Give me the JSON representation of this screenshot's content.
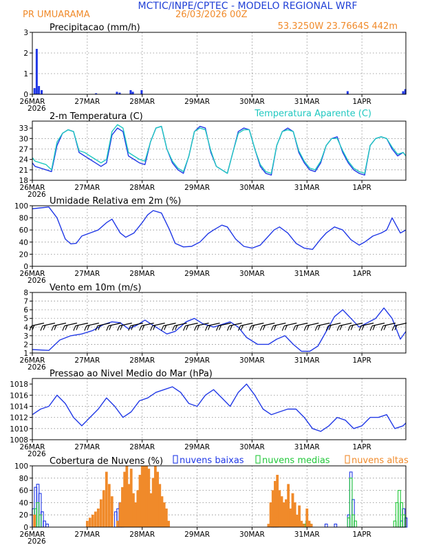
{
  "header": {
    "title": "MCTIC/INPE/CPTEC - MODELO REGIONAL WRF",
    "location": "PR UMUARAMA",
    "run": "26/03/2026 00Z",
    "coords": "53.3250W 23.7664S 442m"
  },
  "colors": {
    "title": "#1f3fd6",
    "orange": "#f08a2a",
    "blue": "#2038e6",
    "cyan": "#20c8c0",
    "green": "#22c83a",
    "black": "#000000",
    "grid": "#888888"
  },
  "x_axis": {
    "ticks": [
      "26MAR",
      "27MAR",
      "28MAR",
      "29MAR",
      "30MAR",
      "31MAR",
      "1APR"
    ],
    "year": "2026",
    "days": 6.8
  },
  "chart_data": [
    {
      "id": "precip",
      "type": "bar",
      "title": "Precipitacao (mm/h)",
      "ylim": [
        0,
        3
      ],
      "yticks": [
        0,
        1,
        2,
        3
      ],
      "x": [
        0.04,
        0.08,
        0.12,
        0.17,
        1.16,
        1.54,
        1.59,
        1.79,
        1.83,
        1.99,
        5.74,
        6.75,
        6.79
      ],
      "values": [
        0.3,
        2.2,
        0.4,
        0.2,
        0.05,
        0.12,
        0.08,
        0.2,
        0.12,
        0.2,
        0.15,
        0.15,
        0.25
      ]
    },
    {
      "id": "temp",
      "type": "line",
      "title": "2-m Temperatura (C)",
      "legend": "Temperatura Aparente (C)",
      "ylim": [
        18,
        35
      ],
      "yticks": [
        18,
        21,
        24,
        27,
        30,
        33
      ],
      "series": [
        {
          "name": "Temperatura",
          "color": "#2038e6",
          "x": [
            0,
            0.05,
            0.15,
            0.25,
            0.35,
            0.45,
            0.55,
            0.65,
            0.75,
            0.85,
            0.95,
            1.05,
            1.15,
            1.25,
            1.35,
            1.45,
            1.55,
            1.65,
            1.75,
            1.85,
            1.95,
            2.05,
            2.15,
            2.25,
            2.35,
            2.45,
            2.55,
            2.65,
            2.75,
            2.85,
            2.95,
            3.05,
            3.15,
            3.25,
            3.35,
            3.45,
            3.55,
            3.65,
            3.75,
            3.85,
            3.95,
            4.05,
            4.15,
            4.25,
            4.35,
            4.45,
            4.55,
            4.65,
            4.75,
            4.85,
            4.95,
            5.05,
            5.15,
            5.25,
            5.35,
            5.45,
            5.55,
            5.65,
            5.75,
            5.85,
            5.95,
            6.05,
            6.15,
            6.25,
            6.35,
            6.45,
            6.55,
            6.65,
            6.75,
            6.8
          ],
          "y": [
            23,
            22,
            21.5,
            21,
            20.5,
            28,
            31.5,
            32.5,
            32,
            26,
            25,
            24,
            23,
            22,
            23,
            31,
            33,
            32,
            25,
            24,
            23,
            22.5,
            29,
            33,
            33.5,
            27,
            23,
            21,
            20,
            25,
            32,
            33.5,
            33,
            26,
            22,
            21,
            20,
            26,
            32,
            33,
            32.5,
            27,
            22,
            20,
            19.5,
            28,
            32,
            33,
            32,
            26,
            23,
            21,
            20.5,
            23,
            28,
            30,
            30.5,
            26,
            23,
            21,
            20,
            19.5,
            28,
            30,
            30.5,
            30,
            27,
            25,
            26,
            25
          ]
        },
        {
          "name": "Temperatura Aparente",
          "color": "#20c8c0",
          "x": [
            0,
            0.05,
            0.15,
            0.25,
            0.35,
            0.45,
            0.55,
            0.65,
            0.75,
            0.85,
            0.95,
            1.05,
            1.15,
            1.25,
            1.35,
            1.45,
            1.55,
            1.65,
            1.75,
            1.85,
            1.95,
            2.05,
            2.15,
            2.25,
            2.35,
            2.45,
            2.55,
            2.65,
            2.75,
            2.85,
            2.95,
            3.05,
            3.15,
            3.25,
            3.35,
            3.45,
            3.55,
            3.65,
            3.75,
            3.85,
            3.95,
            4.05,
            4.15,
            4.25,
            4.35,
            4.45,
            4.55,
            4.65,
            4.75,
            4.85,
            4.95,
            5.05,
            5.15,
            5.25,
            5.35,
            5.45,
            5.55,
            5.65,
            5.75,
            5.85,
            5.95,
            6.05,
            6.15,
            6.25,
            6.35,
            6.45,
            6.55,
            6.65,
            6.75,
            6.8
          ],
          "y": [
            24.5,
            23.5,
            23,
            22.5,
            21,
            29,
            31.5,
            32.5,
            32,
            26.5,
            26,
            25,
            24,
            23,
            24,
            32,
            34,
            33,
            26,
            25,
            24,
            23.5,
            29,
            33,
            33.5,
            27,
            23.5,
            21.5,
            20.5,
            25,
            32,
            33,
            32.5,
            26.5,
            22,
            21,
            20,
            26,
            31.5,
            32.5,
            32.5,
            27,
            22.5,
            20.5,
            20,
            28,
            32,
            32.5,
            32,
            26.5,
            23.5,
            21.5,
            21,
            23.5,
            28,
            30,
            30,
            26.5,
            23.5,
            21.5,
            20.5,
            20,
            28,
            30,
            30.5,
            30,
            27.5,
            25.5,
            26,
            25
          ]
        }
      ]
    },
    {
      "id": "rh",
      "type": "line",
      "title": "Umidade Relativa em 2m (%)",
      "ylim": [
        0,
        100
      ],
      "yticks": [
        0,
        20,
        40,
        60,
        80,
        100
      ],
      "series": [
        {
          "name": "Umidade",
          "color": "#2038e6",
          "x": [
            0,
            0.1,
            0.3,
            0.45,
            0.6,
            0.7,
            0.8,
            0.9,
            1.05,
            1.2,
            1.35,
            1.45,
            1.6,
            1.7,
            1.85,
            2.0,
            2.1,
            2.2,
            2.35,
            2.5,
            2.6,
            2.75,
            2.9,
            3.05,
            3.2,
            3.3,
            3.45,
            3.55,
            3.7,
            3.85,
            4.0,
            4.15,
            4.25,
            4.4,
            4.5,
            4.65,
            4.8,
            4.95,
            5.1,
            5.25,
            5.35,
            5.5,
            5.65,
            5.8,
            5.95,
            6.05,
            6.2,
            6.35,
            6.45,
            6.55,
            6.7,
            6.8
          ],
          "y": [
            95,
            96,
            98,
            80,
            45,
            37,
            38,
            50,
            55,
            60,
            72,
            78,
            55,
            48,
            55,
            72,
            85,
            92,
            88,
            60,
            38,
            32,
            33,
            40,
            54,
            60,
            68,
            65,
            45,
            33,
            30,
            35,
            45,
            60,
            65,
            55,
            38,
            30,
            28,
            45,
            55,
            65,
            60,
            44,
            35,
            40,
            50,
            55,
            60,
            80,
            55,
            60
          ]
        }
      ]
    },
    {
      "id": "wind",
      "type": "line",
      "title": "Vento em 10m (m/s)",
      "ylim": [
        1,
        8
      ],
      "yticks": [
        1,
        2,
        3,
        4,
        5,
        6,
        7,
        8
      ],
      "series": [
        {
          "name": "Vento",
          "color": "#2038e6",
          "x": [
            0,
            0.3,
            0.5,
            0.7,
            0.9,
            1.1,
            1.3,
            1.45,
            1.6,
            1.75,
            1.9,
            2.05,
            2.2,
            2.3,
            2.45,
            2.6,
            2.8,
            2.95,
            3.1,
            3.3,
            3.45,
            3.6,
            3.75,
            3.9,
            4.1,
            4.3,
            4.45,
            4.6,
            4.75,
            4.9,
            5.05,
            5.2,
            5.35,
            5.5,
            5.65,
            5.8,
            5.95,
            6.1,
            6.25,
            6.4,
            6.55,
            6.7,
            6.8
          ],
          "y": [
            1.4,
            1.3,
            2.5,
            3.0,
            3.2,
            3.6,
            4.3,
            4.6,
            4.5,
            3.8,
            4.2,
            4.8,
            4.2,
            3.8,
            3.2,
            3.5,
            4.6,
            5.0,
            4.4,
            4.0,
            4.3,
            4.6,
            4.0,
            2.8,
            2.0,
            2.0,
            2.6,
            3.0,
            2.0,
            1.2,
            1.2,
            1.8,
            3.5,
            5.2,
            6.0,
            5.0,
            4.0,
            4.5,
            5.0,
            6.2,
            5.0,
            2.6,
            3.5
          ]
        },
        {
          "name": "Barbs",
          "color": "#000000",
          "x": [
            0.1,
            0.3,
            0.5,
            0.7,
            0.9,
            1.1,
            1.3,
            1.5,
            1.7,
            1.9,
            2.1,
            2.3,
            2.5,
            2.7,
            2.9,
            3.1,
            3.3,
            3.5,
            3.7,
            3.9,
            4.1,
            4.3,
            4.5,
            4.7,
            4.9,
            5.1,
            5.3,
            5.5,
            5.7,
            5.9,
            6.1,
            6.3,
            6.5,
            6.7
          ],
          "y": [
            4.3,
            4.3,
            4.3,
            4.3,
            4.3,
            4.3,
            4.3,
            4.3,
            4.3,
            4.3,
            4.3,
            4.3,
            4.3,
            4.3,
            4.3,
            4.3,
            4.3,
            4.3,
            4.3,
            4.3,
            4.3,
            4.3,
            4.3,
            4.3,
            4.3,
            4.3,
            4.3,
            4.3,
            4.3,
            4.3,
            4.3,
            4.3,
            4.3,
            4.3
          ]
        }
      ]
    },
    {
      "id": "slp",
      "type": "line",
      "title": "Pressao ao Nivel Medio do Mar (hPa)",
      "ylim": [
        1008,
        1019
      ],
      "yticks": [
        1008,
        1010,
        1012,
        1014,
        1016,
        1018
      ],
      "series": [
        {
          "name": "Pressao",
          "color": "#2038e6",
          "x": [
            0,
            0.15,
            0.3,
            0.45,
            0.6,
            0.75,
            0.9,
            1.05,
            1.2,
            1.35,
            1.5,
            1.65,
            1.8,
            1.95,
            2.1,
            2.25,
            2.4,
            2.55,
            2.7,
            2.85,
            3.0,
            3.15,
            3.3,
            3.45,
            3.6,
            3.75,
            3.9,
            4.05,
            4.2,
            4.35,
            4.5,
            4.65,
            4.8,
            4.95,
            5.1,
            5.25,
            5.4,
            5.55,
            5.7,
            5.85,
            6.0,
            6.15,
            6.3,
            6.45,
            6.6,
            6.75,
            6.8
          ],
          "y": [
            1012.5,
            1013.5,
            1014,
            1016,
            1014.5,
            1012,
            1010.5,
            1012,
            1013.5,
            1015.5,
            1014,
            1012,
            1013,
            1015,
            1015.5,
            1016.5,
            1017,
            1017.5,
            1016.5,
            1014.5,
            1014,
            1016,
            1017,
            1015.5,
            1014,
            1016.5,
            1018,
            1016,
            1013.5,
            1012.5,
            1013,
            1013.5,
            1013.5,
            1012,
            1010,
            1009.5,
            1010.5,
            1012,
            1011.5,
            1010,
            1010.5,
            1012,
            1012,
            1012.5,
            1010,
            1010.5,
            1011
          ]
        }
      ]
    },
    {
      "id": "clouds",
      "type": "bar",
      "title": "Cobertura de Nuvens (%)",
      "legend": [
        "nuvens baixas",
        "nuvens medias",
        "nuvens altas"
      ],
      "ylim": [
        0,
        100
      ],
      "yticks": [
        0,
        20,
        40,
        60,
        80,
        100
      ],
      "series": [
        {
          "name": "nuvens baixas",
          "color": "#2038e6",
          "x": [
            0.02,
            0.06,
            0.1,
            0.14,
            0.18,
            0.22,
            0.27,
            1.52,
            1.56,
            1.6,
            1.64,
            4.37,
            4.41,
            4.45,
            5.0,
            5.35,
            5.52,
            5.76,
            5.8,
            5.84,
            6.72,
            6.76,
            6.8
          ],
          "values": [
            30,
            65,
            70,
            55,
            25,
            10,
            5,
            25,
            30,
            40,
            10,
            10,
            20,
            15,
            5,
            5,
            5,
            20,
            90,
            45,
            10,
            30,
            15
          ]
        },
        {
          "name": "nuvens medias",
          "color": "#22c83a",
          "x": [
            0.06,
            0.1,
            0.14,
            4.95,
            5.0,
            5.05,
            5.76,
            5.8,
            5.84,
            5.88,
            6.6,
            6.64,
            6.68,
            6.72,
            6.76
          ],
          "values": [
            30,
            40,
            20,
            5,
            10,
            5,
            15,
            80,
            20,
            10,
            10,
            40,
            60,
            40,
            20
          ]
        },
        {
          "name": "nuvens altas",
          "color": "#f08a2a",
          "x": [
            0.04,
            1.0,
            1.05,
            1.1,
            1.15,
            1.2,
            1.25,
            1.3,
            1.35,
            1.4,
            1.45,
            1.55,
            1.6,
            1.64,
            1.68,
            1.72,
            1.76,
            1.8,
            1.84,
            1.88,
            1.92,
            1.96,
            2.0,
            2.04,
            2.08,
            2.12,
            2.16,
            2.2,
            2.24,
            2.28,
            2.32,
            2.36,
            2.4,
            2.44,
            2.48,
            4.3,
            4.34,
            4.38,
            4.42,
            4.46,
            4.5,
            4.54,
            4.58,
            4.62,
            4.66,
            4.7,
            4.74,
            4.78,
            4.82,
            4.86,
            4.9,
            4.94,
            5.0,
            5.04,
            5.08
          ],
          "values": [
            20,
            10,
            15,
            20,
            25,
            30,
            45,
            60,
            90,
            70,
            50,
            10,
            40,
            65,
            90,
            100,
            70,
            95,
            55,
            40,
            60,
            85,
            100,
            100,
            100,
            95,
            55,
            80,
            100,
            90,
            70,
            50,
            40,
            30,
            10,
            5,
            40,
            60,
            75,
            85,
            60,
            50,
            40,
            45,
            70,
            30,
            55,
            40,
            20,
            35,
            10,
            5,
            30,
            10,
            5
          ]
        }
      ]
    }
  ]
}
